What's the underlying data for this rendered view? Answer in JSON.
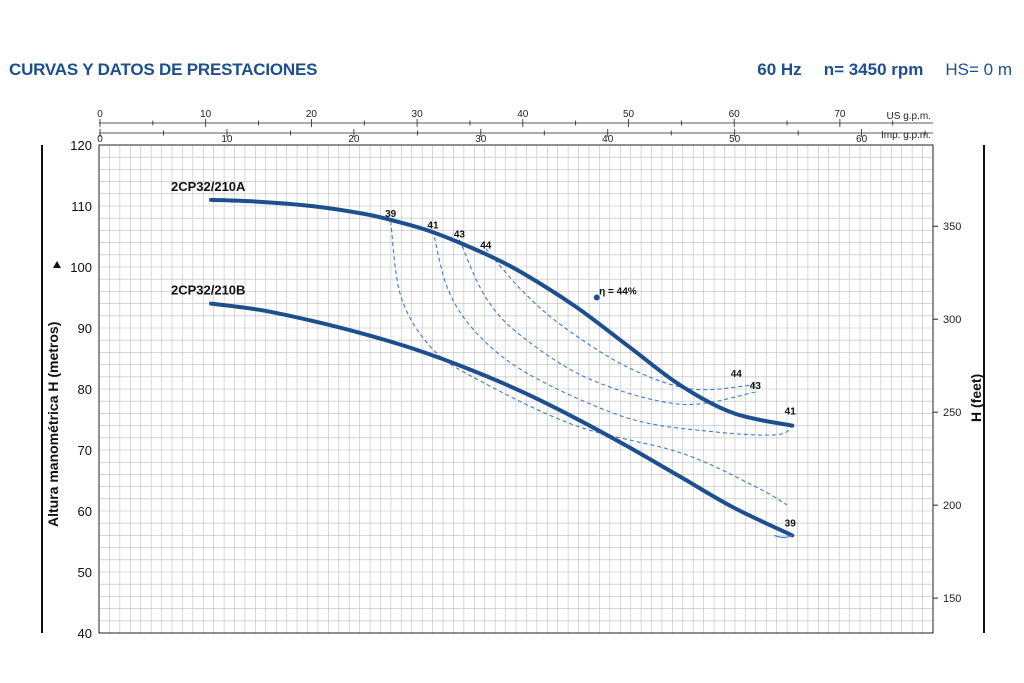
{
  "header": {
    "title": "CURVAS Y DATOS DE PRESTACIONES",
    "freq": "60 Hz",
    "speed": "n= 3450 rpm",
    "hs": "HS= 0 m"
  },
  "colors": {
    "curve": "#1d4f8f",
    "dash": "#3a7bd5",
    "grid": "#bdbdbd",
    "title": "#1d4f8f"
  },
  "chart_data": {
    "type": "line",
    "ylabel_left": "Altura manométrica H (metros)",
    "ylabel_right": "H (feet)",
    "y_ticks_left": [
      40,
      50,
      60,
      70,
      80,
      90,
      100,
      110,
      120
    ],
    "ylim": [
      40,
      120
    ],
    "y_ticks_right": [
      150,
      200,
      250,
      300,
      350
    ],
    "x_top_label": "US g.p.m.",
    "x_top_ticks": [
      0,
      10,
      20,
      30,
      40,
      50,
      60,
      70
    ],
    "x_bottom_label": "Imp. g.p.m.",
    "x_bottom_ticks": [
      0,
      10,
      20,
      30,
      40,
      50,
      60
    ],
    "xlim_us_gpm": [
      0,
      79
    ],
    "series": [
      {
        "name": "2CP32/210A",
        "x": [
          10.5,
          15,
          20,
          25,
          28,
          31,
          34,
          37,
          40,
          45,
          50,
          55,
          60,
          65.5
        ],
        "y": [
          111,
          110.7,
          110,
          108.7,
          107.5,
          106,
          104,
          101.7,
          99,
          93.5,
          87,
          80.5,
          76,
          74
        ]
      },
      {
        "name": "2CP32/210B",
        "x": [
          10.5,
          15,
          20,
          25,
          30,
          35,
          40,
          45,
          50,
          55,
          60,
          65.5
        ],
        "y": [
          94,
          93,
          91.2,
          89,
          86.4,
          83.2,
          79.5,
          75.2,
          70.5,
          65.5,
          60.5,
          56
        ]
      }
    ],
    "efficiency_labels": [
      {
        "text": "39",
        "x": 27.5,
        "y": 108.2
      },
      {
        "text": "41",
        "x": 31.5,
        "y": 106.3
      },
      {
        "text": "43",
        "x": 34.0,
        "y": 104.8
      },
      {
        "text": "44",
        "x": 36.5,
        "y": 103.0
      },
      {
        "text": "η = 44%",
        "x": 49.0,
        "y": 95.5
      },
      {
        "text": "44",
        "x": 60.2,
        "y": 82.0
      },
      {
        "text": "43",
        "x": 62.0,
        "y": 80.0
      },
      {
        "text": "41",
        "x": 65.3,
        "y": 75.8
      },
      {
        "text": "39",
        "x": 65.3,
        "y": 57.5
      }
    ],
    "efficiency_curves": [
      {
        "label": "39",
        "points": [
          [
            27.5,
            107.5
          ],
          [
            28.5,
            95
          ],
          [
            31.5,
            86.5
          ],
          [
            36,
            81.3
          ],
          [
            45,
            74
          ],
          [
            55,
            69.5
          ],
          [
            62,
            64
          ],
          [
            65,
            61
          ]
        ]
      },
      {
        "label": "41",
        "points": [
          [
            31.5,
            106
          ],
          [
            33,
            96
          ],
          [
            36,
            88.5
          ],
          [
            41,
            82
          ],
          [
            50,
            75.2
          ],
          [
            58,
            73
          ],
          [
            64,
            72.5
          ],
          [
            65.5,
            74
          ]
        ]
      },
      {
        "label": "43",
        "points": [
          [
            34,
            104.5
          ],
          [
            36.5,
            95
          ],
          [
            40,
            88.5
          ],
          [
            46.5,
            81.5
          ],
          [
            55,
            77.5
          ],
          [
            62,
            79.5
          ]
        ]
      },
      {
        "label": "44",
        "points": [
          [
            36.5,
            103
          ],
          [
            40,
            96
          ],
          [
            44,
            90
          ],
          [
            50,
            83.5
          ],
          [
            56,
            80
          ],
          [
            62,
            80.7
          ]
        ]
      }
    ]
  }
}
